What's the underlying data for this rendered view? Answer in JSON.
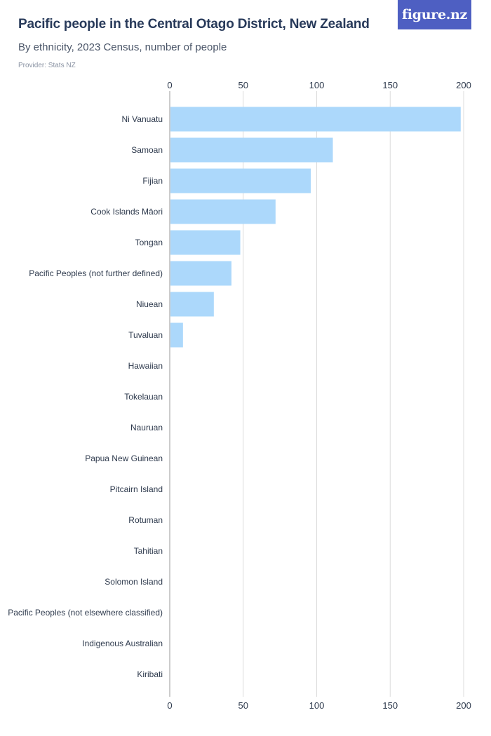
{
  "header": {
    "title": "Pacific people in the Central Otago District, New Zealand",
    "subtitle": "By ethnicity, 2023 Census, number of people",
    "provider": "Provider: Stats NZ",
    "logo": "figure.nz"
  },
  "colors": {
    "bar": "#acd8fb",
    "grid": "#dcdcdc",
    "axis": "#9a9a9a",
    "logo_bg": "#4e5fc2"
  },
  "chart_data": {
    "type": "bar",
    "orientation": "horizontal",
    "title": "Pacific people in the Central Otago District, New Zealand",
    "subtitle": "By ethnicity, 2023 Census, number of people",
    "xlabel": "",
    "ylabel": "",
    "xlim": [
      0,
      200
    ],
    "xticks": [
      0,
      50,
      100,
      150,
      200
    ],
    "grid": true,
    "categories": [
      "Ni Vanuatu",
      "Samoan",
      "Fijian",
      "Cook Islands Māori",
      "Tongan",
      "Pacific Peoples (not further defined)",
      "Niuean",
      "Tuvaluan",
      "Hawaiian",
      "Tokelauan",
      "Nauruan",
      "Papua New Guinean",
      "Pitcairn Island",
      "Rotuman",
      "Tahitian",
      "Solomon Island",
      "Pacific Peoples (not elsewhere classified)",
      "Indigenous Australian",
      "Kiribati"
    ],
    "values": [
      198,
      111,
      96,
      72,
      48,
      42,
      30,
      9,
      0,
      0,
      0,
      0,
      0,
      0,
      0,
      0,
      0,
      0,
      0
    ]
  }
}
